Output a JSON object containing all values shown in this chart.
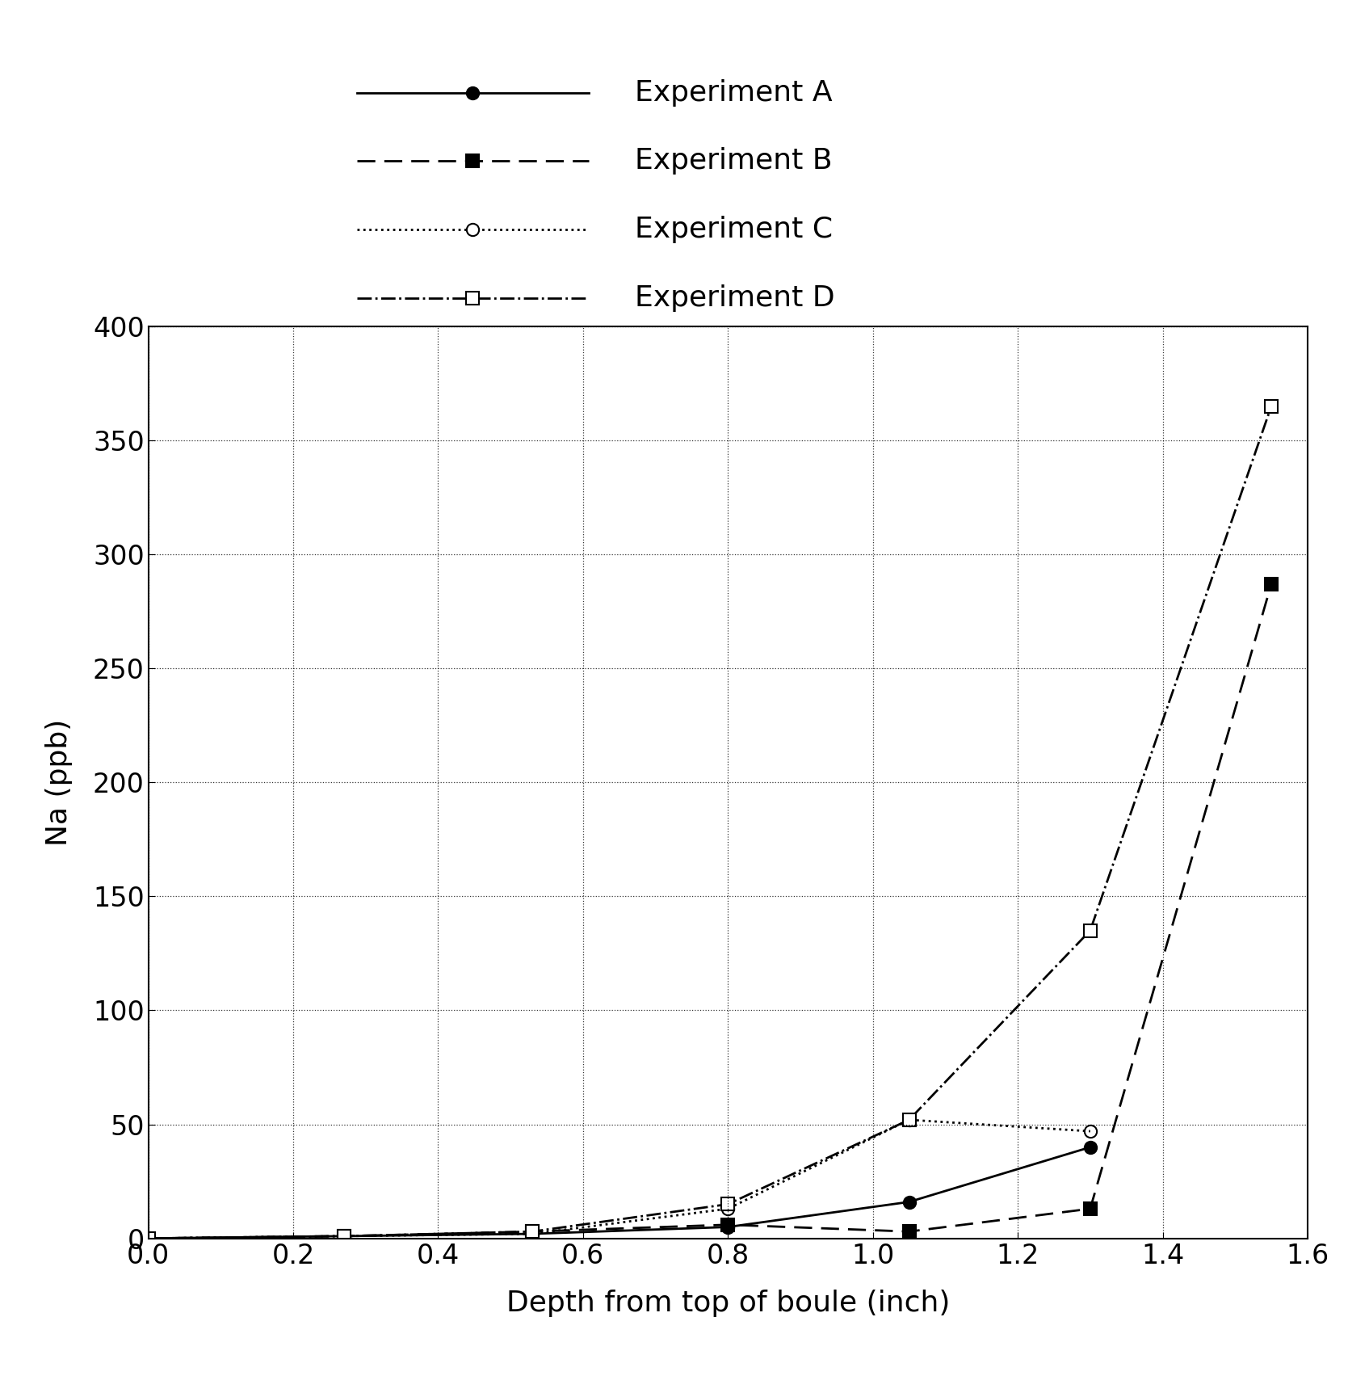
{
  "experiment_A": {
    "x": [
      0,
      0.27,
      0.53,
      0.8,
      1.05,
      1.3
    ],
    "y": [
      0,
      1,
      2,
      5,
      16,
      40
    ],
    "label": "Experiment A",
    "linestyle": "-",
    "marker": "o",
    "markerfacecolor": "black",
    "markeredgecolor": "black",
    "linewidth": 2.0,
    "markersize": 11
  },
  "experiment_B": {
    "x": [
      0,
      0.27,
      0.53,
      0.8,
      1.05,
      1.3,
      1.55
    ],
    "y": [
      0,
      1,
      3,
      6,
      3,
      13,
      287
    ],
    "label": "Experiment B",
    "linestyle": "--",
    "marker": "s",
    "markerfacecolor": "black",
    "markeredgecolor": "black",
    "linewidth": 2.0,
    "markersize": 11
  },
  "experiment_C": {
    "x": [
      0,
      0.27,
      0.53,
      0.8,
      1.05,
      1.3
    ],
    "y": [
      0,
      1,
      2,
      13,
      52,
      47
    ],
    "label": "Experiment C",
    "linestyle": "--",
    "marker": "o",
    "markerfacecolor": "white",
    "markeredgecolor": "black",
    "linewidth": 2.0,
    "markersize": 11,
    "dashes": [
      2,
      4
    ]
  },
  "experiment_D": {
    "x": [
      0,
      0.27,
      0.53,
      0.8,
      1.05,
      1.3,
      1.55
    ],
    "y": [
      0,
      1,
      3,
      15,
      52,
      135,
      365
    ],
    "label": "Experiment D",
    "linestyle": "-.",
    "marker": "s",
    "markerfacecolor": "white",
    "markeredgecolor": "black",
    "linewidth": 2.0,
    "markersize": 11,
    "dashes": [
      6,
      2,
      2,
      2
    ]
  },
  "xlabel": "Depth from top of boule (inch)",
  "ylabel": "Na (ppb)",
  "xlim": [
    0,
    1.6
  ],
  "ylim": [
    0,
    400
  ],
  "xticks": [
    0,
    0.2,
    0.4,
    0.6,
    0.8,
    1.0,
    1.2,
    1.4,
    1.6
  ],
  "yticks": [
    0,
    50,
    100,
    150,
    200,
    250,
    300,
    350,
    400
  ],
  "background_color": "#ffffff",
  "legend_fontsize": 26,
  "axis_fontsize": 26,
  "tick_fontsize": 24
}
